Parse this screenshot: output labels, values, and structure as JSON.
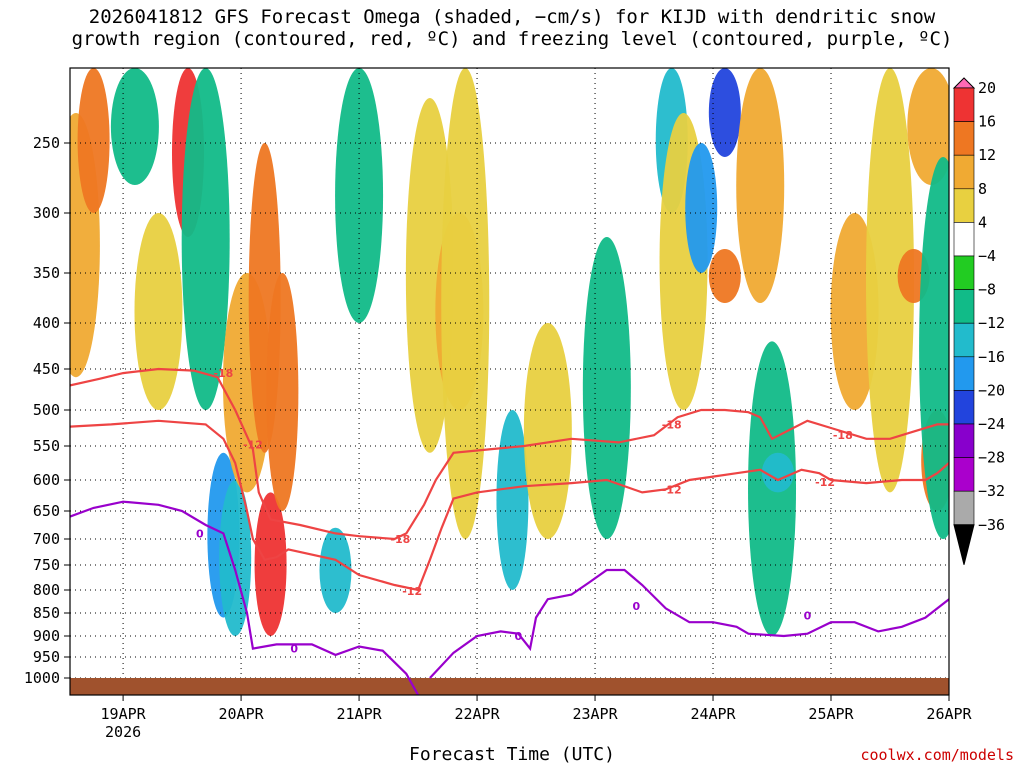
{
  "title_line1": "2026041812 GFS Forecast Omega (shaded, −cm/s) for KIJD with dendritic snow",
  "title_line2": "growth region (contoured, red, ºC) and freezing level (contoured, purple, ºC)",
  "xlabel": "Forecast Time (UTC)",
  "credit": "coolwx.com/models",
  "chart_data": {
    "type": "heatmap",
    "y_axis": {
      "unit": "hPa",
      "ticks": [
        250,
        300,
        350,
        400,
        450,
        500,
        550,
        600,
        650,
        700,
        750,
        800,
        850,
        900,
        950,
        1000
      ],
      "range": [
        200,
        1020
      ]
    },
    "x_axis": {
      "ticks": [
        "19APR",
        "20APR",
        "21APR",
        "22APR",
        "23APR",
        "24APR",
        "25APR",
        "26APR"
      ],
      "sub_label": "2026",
      "range_days": [
        18.55,
        26.0
      ]
    },
    "colorbar": {
      "labels": [
        "20",
        "16",
        "12",
        "8",
        "4",
        "−4",
        "−8",
        "−12",
        "−16",
        "−20",
        "−24",
        "−28",
        "−32",
        "−36"
      ],
      "colors": [
        "#ff69b4",
        "#ee3333",
        "#ee7722",
        "#f0aa33",
        "#e8d040",
        "#ffffff",
        "#22cc22",
        "#11bb88",
        "#22bbcc",
        "#2299ee",
        "#2244dd",
        "#8800cc",
        "#aa00cc",
        "#aaaaaa",
        "#000000"
      ]
    },
    "contours": {
      "minus18": {
        "label": "-18",
        "color": "#ee4444",
        "points": [
          [
            18.55,
            470
          ],
          [
            18.8,
            462
          ],
          [
            19.0,
            455
          ],
          [
            19.3,
            450
          ],
          [
            19.6,
            452
          ],
          [
            19.8,
            460
          ],
          [
            19.95,
            500
          ],
          [
            20.1,
            555
          ],
          [
            20.15,
            620
          ],
          [
            20.25,
            665
          ],
          [
            20.5,
            675
          ],
          [
            20.8,
            690
          ],
          [
            21.0,
            695
          ],
          [
            21.3,
            700
          ],
          [
            21.4,
            690
          ],
          [
            21.55,
            640
          ],
          [
            21.65,
            600
          ],
          [
            21.8,
            560
          ],
          [
            22.1,
            555
          ],
          [
            22.4,
            550
          ],
          [
            22.8,
            540
          ],
          [
            23.2,
            545
          ],
          [
            23.5,
            535
          ],
          [
            23.7,
            510
          ],
          [
            23.9,
            500
          ],
          [
            24.1,
            500
          ],
          [
            24.3,
            503
          ],
          [
            24.4,
            510
          ],
          [
            24.5,
            540
          ],
          [
            24.8,
            515
          ],
          [
            25.0,
            525
          ],
          [
            25.3,
            540
          ],
          [
            25.5,
            540
          ],
          [
            25.7,
            530
          ],
          [
            25.9,
            520
          ],
          [
            26.0,
            520
          ]
        ],
        "label_at": [
          [
            19.85,
            455
          ],
          [
            21.35,
            700
          ],
          [
            23.65,
            520
          ],
          [
            25.1,
            535
          ]
        ]
      },
      "minus12": {
        "label": "-12",
        "color": "#ee4444",
        "points": [
          [
            18.55,
            523
          ],
          [
            18.9,
            520
          ],
          [
            19.3,
            515
          ],
          [
            19.7,
            520
          ],
          [
            19.85,
            540
          ],
          [
            19.95,
            575
          ],
          [
            20.05,
            650
          ],
          [
            20.1,
            700
          ],
          [
            20.2,
            740
          ],
          [
            20.3,
            735
          ],
          [
            20.4,
            720
          ],
          [
            20.8,
            740
          ],
          [
            21.0,
            770
          ],
          [
            21.3,
            790
          ],
          [
            21.5,
            800
          ],
          [
            21.6,
            740
          ],
          [
            21.7,
            680
          ],
          [
            21.8,
            630
          ],
          [
            22.0,
            620
          ],
          [
            22.4,
            610
          ],
          [
            22.8,
            605
          ],
          [
            23.1,
            600
          ],
          [
            23.4,
            620
          ],
          [
            23.6,
            615
          ],
          [
            23.8,
            600
          ],
          [
            24.0,
            595
          ],
          [
            24.2,
            590
          ],
          [
            24.4,
            585
          ],
          [
            24.55,
            600
          ],
          [
            24.75,
            585
          ],
          [
            24.9,
            590
          ],
          [
            25.0,
            600
          ],
          [
            25.3,
            605
          ],
          [
            25.6,
            600
          ],
          [
            25.8,
            600
          ],
          [
            25.9,
            590
          ],
          [
            26.0,
            575
          ]
        ],
        "label_at": [
          [
            20.1,
            548
          ],
          [
            21.45,
            802
          ],
          [
            23.65,
            615
          ],
          [
            24.95,
            603
          ]
        ]
      },
      "zero": {
        "label": "0",
        "color": "#9900cc",
        "points": [
          [
            18.55,
            660
          ],
          [
            18.75,
            645
          ],
          [
            19.0,
            635
          ],
          [
            19.3,
            640
          ],
          [
            19.5,
            650
          ],
          [
            19.7,
            675
          ],
          [
            19.85,
            690
          ],
          [
            19.95,
            760
          ],
          [
            20.05,
            850
          ],
          [
            20.1,
            930
          ],
          [
            20.3,
            920
          ],
          [
            20.6,
            920
          ],
          [
            20.8,
            945
          ],
          [
            21.0,
            925
          ],
          [
            21.2,
            935
          ],
          [
            21.4,
            990
          ],
          [
            21.5,
            1020
          ]
        ],
        "points2": [
          [
            21.6,
            1000
          ],
          [
            21.8,
            940
          ],
          [
            22.0,
            900
          ],
          [
            22.2,
            890
          ],
          [
            22.35,
            895
          ],
          [
            22.45,
            930
          ],
          [
            22.5,
            860
          ],
          [
            22.6,
            820
          ],
          [
            22.8,
            810
          ],
          [
            22.95,
            785
          ],
          [
            23.1,
            760
          ],
          [
            23.25,
            760
          ],
          [
            23.4,
            790
          ],
          [
            23.6,
            840
          ],
          [
            23.8,
            870
          ],
          [
            24.0,
            870
          ],
          [
            24.2,
            880
          ],
          [
            24.3,
            895
          ],
          [
            24.6,
            900
          ],
          [
            24.8,
            895
          ],
          [
            25.0,
            870
          ],
          [
            25.2,
            870
          ],
          [
            25.4,
            890
          ],
          [
            25.6,
            880
          ],
          [
            25.8,
            860
          ],
          [
            26.0,
            820
          ]
        ],
        "label_at": [
          [
            19.65,
            690
          ],
          [
            20.45,
            930
          ],
          [
            22.35,
            900
          ],
          [
            23.35,
            835
          ],
          [
            24.8,
            855
          ]
        ]
      }
    },
    "shading": [
      {
        "day": 18.6,
        "top": 230,
        "bot": 460,
        "value": 8
      },
      {
        "day": 18.75,
        "top": 200,
        "bot": 300,
        "value": 12
      },
      {
        "day": 19.1,
        "top": 200,
        "bot": 280,
        "value": -8
      },
      {
        "day": 19.3,
        "top": 300,
        "bot": 500,
        "value": 4
      },
      {
        "day": 19.55,
        "top": 200,
        "bot": 320,
        "value": 16
      },
      {
        "day": 19.7,
        "top": 200,
        "bot": 500,
        "value": -8
      },
      {
        "day": 19.85,
        "top": 560,
        "bot": 860,
        "value": -16
      },
      {
        "day": 19.95,
        "top": 600,
        "bot": 900,
        "value": -12
      },
      {
        "day": 20.05,
        "top": 350,
        "bot": 620,
        "value": 8
      },
      {
        "day": 20.2,
        "top": 250,
        "bot": 560,
        "value": 12
      },
      {
        "day": 20.25,
        "top": 620,
        "bot": 900,
        "value": 16
      },
      {
        "day": 20.35,
        "top": 350,
        "bot": 650,
        "value": 12
      },
      {
        "day": 20.8,
        "top": 680,
        "bot": 850,
        "value": -12
      },
      {
        "day": 21.0,
        "top": 200,
        "bot": 400,
        "value": -8
      },
      {
        "day": 21.6,
        "top": 220,
        "bot": 560,
        "value": 4
      },
      {
        "day": 21.85,
        "top": 300,
        "bot": 500,
        "value": 8
      },
      {
        "day": 21.9,
        "top": 200,
        "bot": 700,
        "value": 4
      },
      {
        "day": 22.3,
        "top": 500,
        "bot": 800,
        "value": -12
      },
      {
        "day": 22.6,
        "top": 400,
        "bot": 700,
        "value": 4
      },
      {
        "day": 23.1,
        "top": 320,
        "bot": 700,
        "value": -8
      },
      {
        "day": 23.65,
        "top": 200,
        "bot": 300,
        "value": -12
      },
      {
        "day": 23.75,
        "top": 230,
        "bot": 500,
        "value": 4
      },
      {
        "day": 23.9,
        "top": 250,
        "bot": 350,
        "value": -16
      },
      {
        "day": 24.1,
        "top": 200,
        "bot": 260,
        "value": -20
      },
      {
        "day": 24.1,
        "top": 330,
        "bot": 380,
        "value": 12
      },
      {
        "day": 24.4,
        "top": 200,
        "bot": 380,
        "value": 8
      },
      {
        "day": 24.5,
        "top": 420,
        "bot": 900,
        "value": -8
      },
      {
        "day": 24.55,
        "top": 560,
        "bot": 620,
        "value": -12
      },
      {
        "day": 25.2,
        "top": 300,
        "bot": 500,
        "value": 8
      },
      {
        "day": 25.5,
        "top": 200,
        "bot": 620,
        "value": 4
      },
      {
        "day": 25.7,
        "top": 330,
        "bot": 380,
        "value": 12
      },
      {
        "day": 25.85,
        "top": 200,
        "bot": 280,
        "value": 8
      },
      {
        "day": 25.9,
        "top": 500,
        "bot": 650,
        "value": 12
      },
      {
        "day": 25.95,
        "top": 260,
        "bot": 700,
        "value": -8
      }
    ]
  }
}
